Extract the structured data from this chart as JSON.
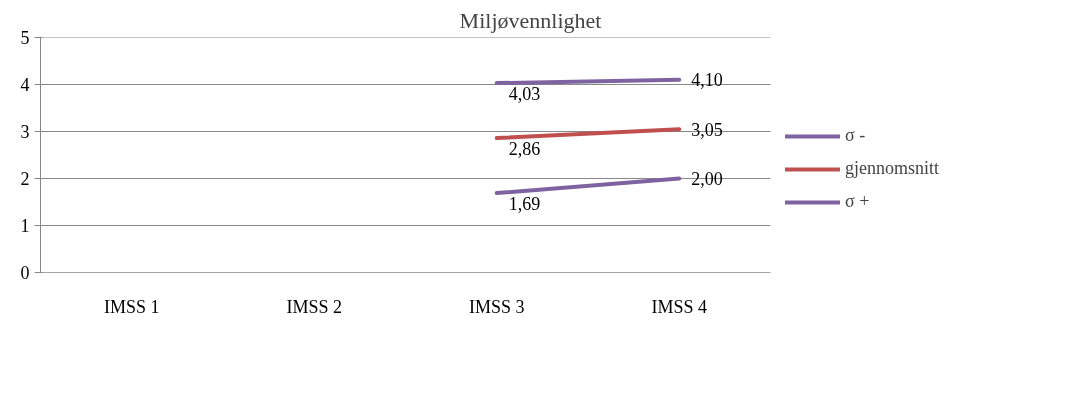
{
  "chart_data": {
    "type": "line",
    "title": "Miljøvennlighet",
    "categories": [
      "IMSS 1",
      "IMSS 2",
      "IMSS 3",
      "IMSS 4"
    ],
    "series": [
      {
        "name": "σ -",
        "color": "#7f63a1",
        "values": [
          null,
          null,
          1.69,
          2.0
        ],
        "value_labels": [
          null,
          null,
          "1,69",
          "2,00"
        ]
      },
      {
        "name": "gjennomsnitt",
        "color": "#c0504d",
        "values": [
          null,
          null,
          2.86,
          3.05
        ],
        "value_labels": [
          null,
          null,
          "2,86",
          "3,05"
        ]
      },
      {
        "name": "σ +",
        "color": "#7f63a1",
        "values": [
          null,
          null,
          4.03,
          4.1
        ],
        "value_labels": [
          null,
          null,
          "4,03",
          "4,10"
        ]
      }
    ],
    "ylim": [
      0,
      5
    ],
    "yticks": [
      0,
      1,
      2,
      3,
      4,
      5
    ],
    "grid": "y",
    "legend": "right",
    "marker": "none",
    "line_style": "solid"
  }
}
